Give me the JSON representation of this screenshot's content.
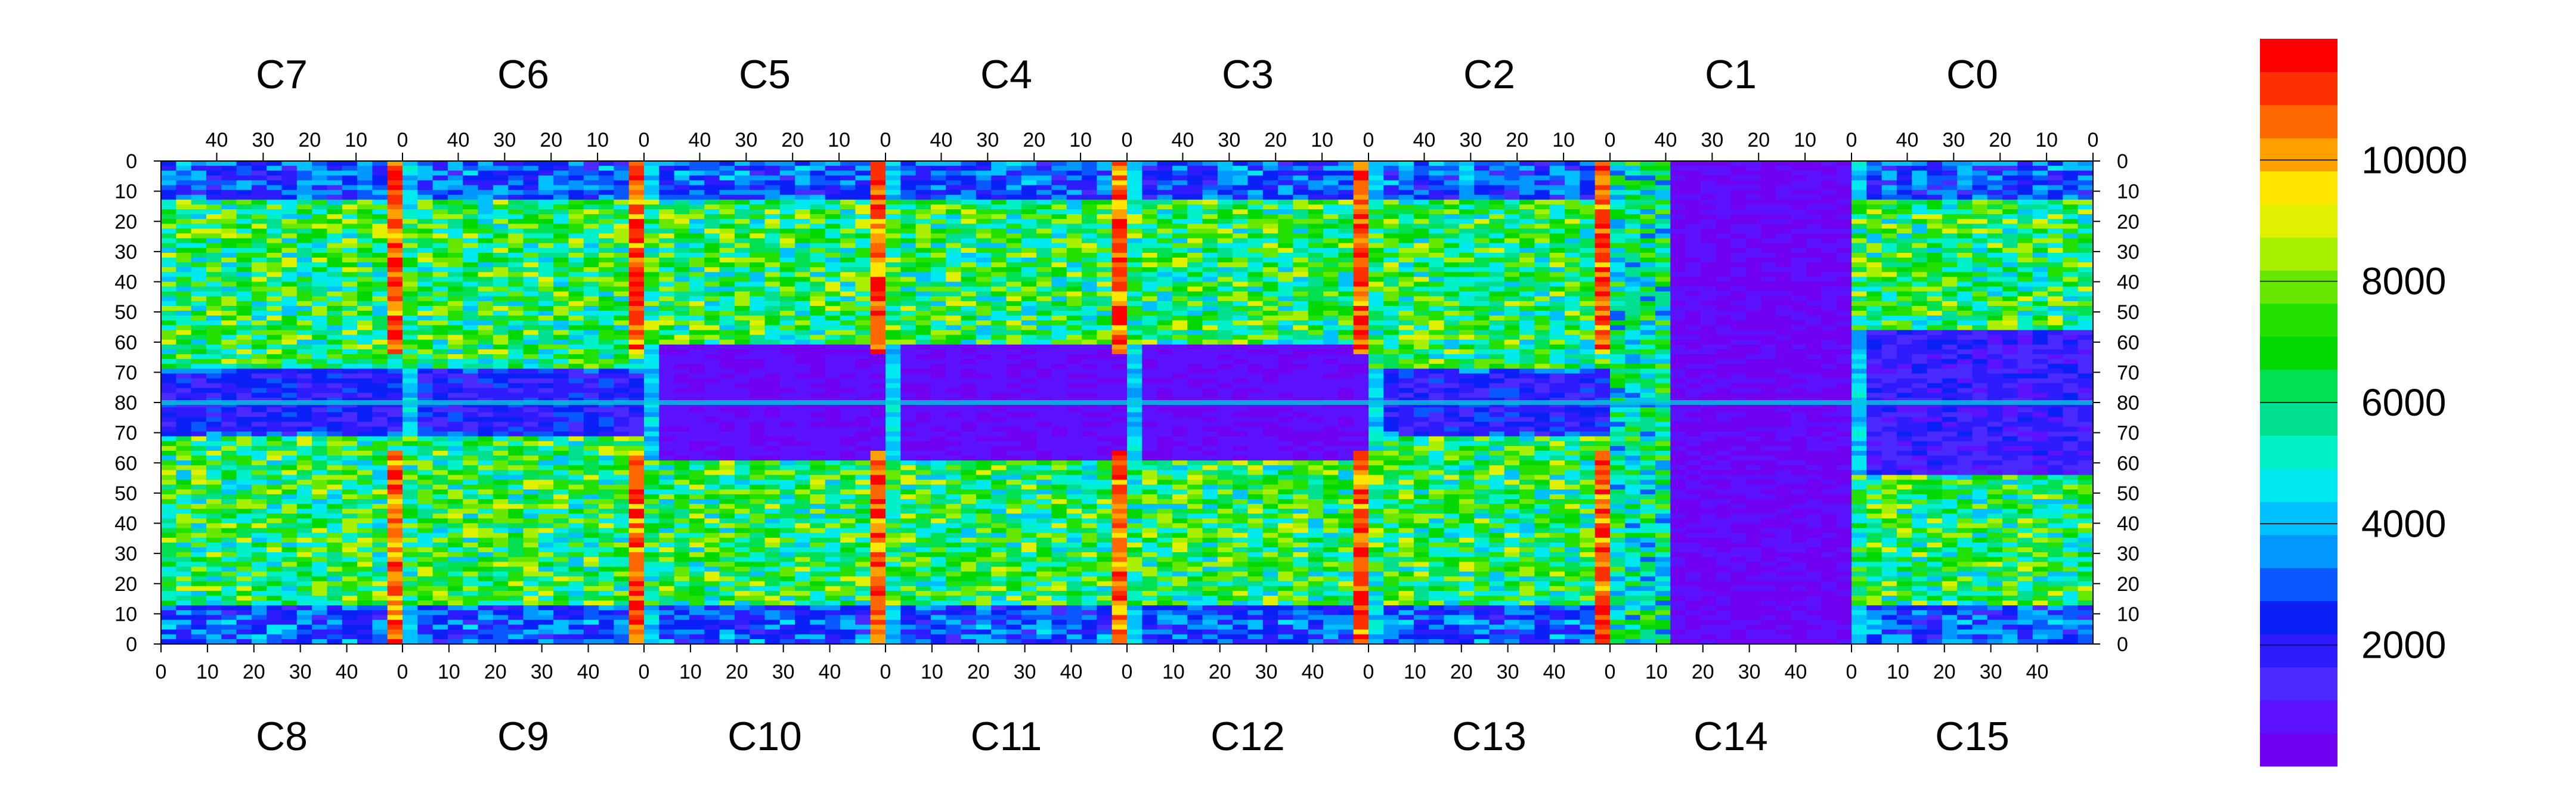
{
  "chart_data": {
    "type": "heatmap",
    "title": "",
    "color_scale": {
      "min": 0,
      "max": 12000,
      "n_bins": 20,
      "ticks": [
        2000,
        4000,
        6000,
        8000,
        10000
      ],
      "tick_labels": [
        "2000",
        "4000",
        "6000",
        "8000",
        "10000"
      ],
      "colors": [
        "#7000f0",
        "#5c12ff",
        "#4a2aff",
        "#2e1cff",
        "#0b20f7",
        "#0a58ff",
        "#0098ff",
        "#00c0ff",
        "#00e8f0",
        "#00f0c8",
        "#00e090",
        "#00e050",
        "#00d800",
        "#22e000",
        "#66e800",
        "#a8f000",
        "#e0f000",
        "#ffe600",
        "#ffa000",
        "#ff6800",
        "#ff3000",
        "#ff0000"
      ]
    },
    "chips_top": [
      {
        "name": "C7",
        "tick_labels": [
          "40",
          "30",
          "20",
          "10",
          "0"
        ]
      },
      {
        "name": "C6",
        "tick_labels": [
          "40",
          "30",
          "20",
          "10",
          "0"
        ]
      },
      {
        "name": "C5",
        "tick_labels": [
          "40",
          "30",
          "20",
          "10",
          "0"
        ]
      },
      {
        "name": "C4",
        "tick_labels": [
          "40",
          "30",
          "20",
          "10",
          "0"
        ]
      },
      {
        "name": "C3",
        "tick_labels": [
          "40",
          "30",
          "20",
          "10",
          "0"
        ]
      },
      {
        "name": "C2",
        "tick_labels": [
          "40",
          "30",
          "20",
          "10",
          "0"
        ]
      },
      {
        "name": "C1",
        "tick_labels": [
          "40",
          "30",
          "20",
          "10",
          "0"
        ]
      },
      {
        "name": "C0",
        "tick_labels": [
          "40",
          "30",
          "20",
          "10",
          "0"
        ]
      }
    ],
    "chips_bottom": [
      {
        "name": "C8",
        "tick_labels": [
          "0",
          "10",
          "20",
          "30",
          "40"
        ]
      },
      {
        "name": "C9",
        "tick_labels": [
          "0",
          "10",
          "20",
          "30",
          "40"
        ]
      },
      {
        "name": "C10",
        "tick_labels": [
          "0",
          "10",
          "20",
          "30",
          "40"
        ]
      },
      {
        "name": "C11",
        "tick_labels": [
          "0",
          "10",
          "20",
          "30",
          "40"
        ]
      },
      {
        "name": "C12",
        "tick_labels": [
          "0",
          "10",
          "20",
          "30",
          "40"
        ]
      },
      {
        "name": "C13",
        "tick_labels": [
          "0",
          "10",
          "20",
          "30",
          "40"
        ]
      },
      {
        "name": "C14",
        "tick_labels": [
          "0",
          "10",
          "20",
          "30",
          "40"
        ]
      },
      {
        "name": "C15",
        "tick_labels": [
          "0",
          "10",
          "20",
          "30",
          "40"
        ]
      }
    ],
    "y_tick_labels": [
      "0",
      "10",
      "20",
      "30",
      "40",
      "50",
      "60",
      "70",
      "80",
      "70",
      "60",
      "50",
      "40",
      "30",
      "20",
      "10",
      "0"
    ],
    "grid": false,
    "legend_position": "right"
  }
}
